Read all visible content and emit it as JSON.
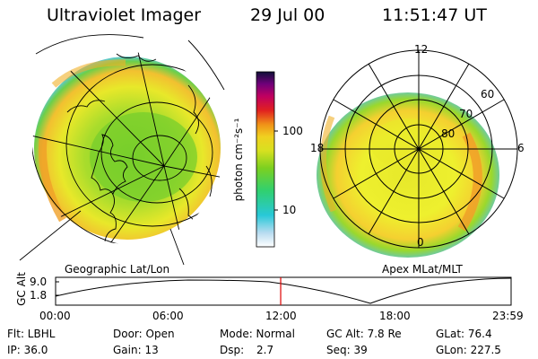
{
  "header": {
    "instrument": "Ultraviolet Imager",
    "date": "29 Jul 00",
    "time": "11:51:47 UT"
  },
  "colorbar": {
    "unit": "photon cm⁻²s⁻¹",
    "ticks": [
      "100",
      "10"
    ]
  },
  "geo_panel": {
    "label": "Geographic Lat/Lon"
  },
  "apex_panel": {
    "label": "Apex MLat/MLT",
    "mlt_labels": {
      "top": "12",
      "left": "18",
      "right": "6",
      "bottom": "0"
    },
    "lat_labels": [
      "60",
      "70",
      "80"
    ]
  },
  "altitude_plot": {
    "ylabel": "GC Alt",
    "yticks": [
      "9.0",
      "1.8"
    ],
    "xticks": [
      "00:00",
      "06:00",
      "12:00",
      "18:00",
      "23:59"
    ],
    "current_time_marker_hours": 11.86
  },
  "status": {
    "flt": "Flt: LBHL",
    "ip": "IP: 36.0",
    "door": "Door: Open",
    "gain": "Gain: 13",
    "mode": "Mode: Normal",
    "dsp_label": "Dsp:",
    "dsp_value": "2.7",
    "gc_alt": "GC Alt: 7.8 Re",
    "seq": "Seq: 39",
    "glat": "GLat: 76.4",
    "glon": "GLon: 227.5"
  },
  "colors": {
    "marker": "#dd0000",
    "background": "#ffffff"
  }
}
